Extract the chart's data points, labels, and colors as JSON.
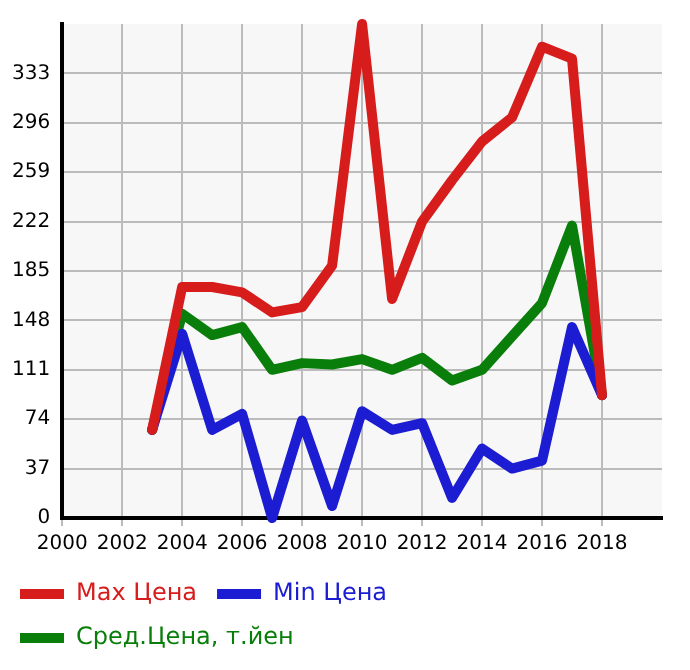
{
  "chart_data": {
    "type": "line",
    "x": [
      2003,
      2004,
      2005,
      2006,
      2007,
      2008,
      2009,
      2010,
      2011,
      2012,
      2013,
      2014,
      2015,
      2016,
      2017,
      2018
    ],
    "series": [
      {
        "name": "Max Цена",
        "color": "#d71c1c",
        "values": [
          66,
          173,
          173,
          169,
          154,
          158,
          189,
          370,
          164,
          222,
          253,
          282,
          300,
          353,
          344,
          92
        ]
      },
      {
        "name": "Min Цена",
        "color": "#1c1cd2",
        "values": [
          66,
          138,
          66,
          78,
          0,
          73,
          9,
          80,
          66,
          71,
          15,
          52,
          37,
          43,
          143,
          92
        ]
      },
      {
        "name": "Сред.Цена, т.йен",
        "color": "#0a7e0a",
        "values": [
          66,
          153,
          137,
          143,
          111,
          116,
          115,
          119,
          111,
          120,
          103,
          111,
          136,
          161,
          219,
          92
        ]
      }
    ],
    "xlim": [
      2000,
      2020
    ],
    "xticks": [
      2000,
      2002,
      2004,
      2006,
      2008,
      2010,
      2012,
      2014,
      2016,
      2018
    ],
    "ylim": [
      0,
      370
    ],
    "yticks": [
      0,
      37,
      74,
      111,
      148,
      185,
      222,
      259,
      296,
      333
    ],
    "grid": true,
    "legend": "bottom",
    "marker": "none",
    "line_style": "solid"
  }
}
